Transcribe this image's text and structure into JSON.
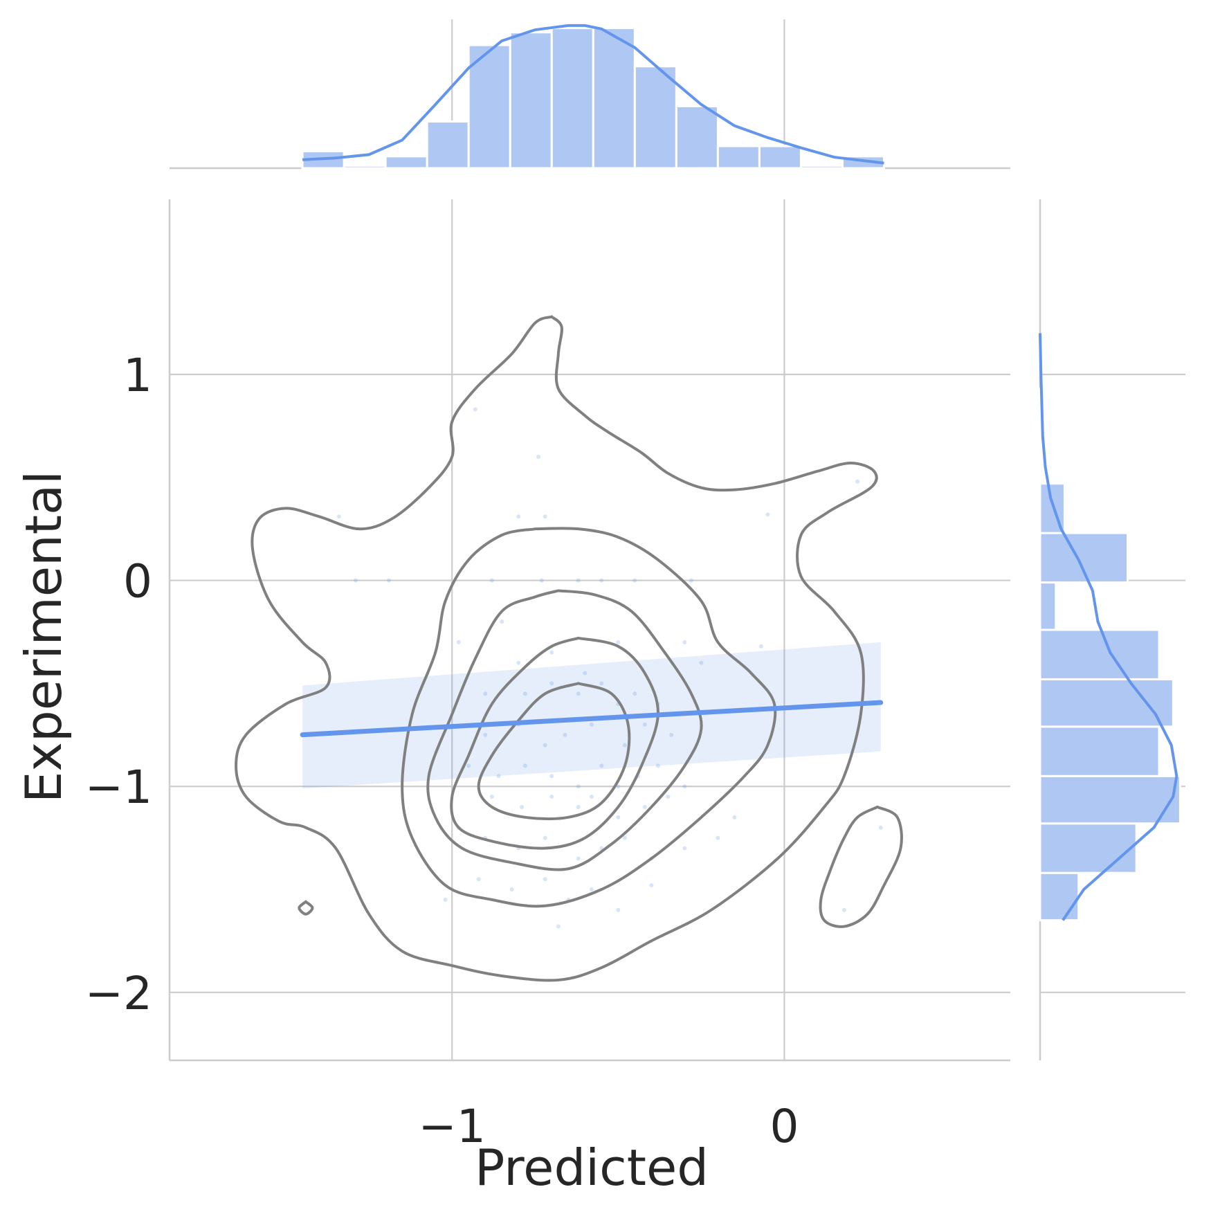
{
  "chart_data": {
    "type": "scatter",
    "subtype": "joint-plot (scatter + regression + kde contours + marginal histograms with kde)",
    "title": "",
    "xlabel": "Predicted",
    "ylabel": "Experimental",
    "xlim": [
      -1.85,
      0.68
    ],
    "ylim": [
      -2.33,
      1.85
    ],
    "x_ticks": [
      -1,
      0
    ],
    "x_tick_labels": [
      "−1",
      "0"
    ],
    "y_ticks": [
      -2,
      -1,
      0,
      1
    ],
    "y_tick_labels": [
      "−2",
      "−1",
      "0",
      "1"
    ],
    "grid": true,
    "colors": {
      "main": "#6495ed",
      "hist": "#aec7f3",
      "contour": "#808080",
      "grid": "#cccccc",
      "text": "#262626"
    },
    "regression": {
      "x_range": [
        -1.45,
        0.29
      ],
      "slope": 0.09,
      "intercept": -0.619,
      "ci_upper_at_ends": [
        -0.51,
        -0.3
      ],
      "ci_lower_at_ends": [
        -1.01,
        -0.83
      ]
    },
    "marginal_x_hist": {
      "bin_edges": [
        -1.45,
        -1.325,
        -1.2,
        -1.075,
        -0.95,
        -0.825,
        -0.7,
        -0.575,
        -0.45,
        -0.325,
        -0.2,
        -0.075,
        0.05,
        0.175,
        0.3
      ],
      "counts": [
        2,
        0.3,
        1.4,
        5.5,
        14.5,
        16,
        16.5,
        16.5,
        12,
        7.3,
        2.6,
        2.6,
        0.3,
        1.4
      ]
    },
    "marginal_x_kde": {
      "x": [
        -1.45,
        -1.35,
        -1.25,
        -1.15,
        -1.05,
        -0.95,
        -0.85,
        -0.75,
        -0.65,
        -0.6,
        -0.55,
        -0.45,
        -0.35,
        -0.25,
        -0.15,
        -0.05,
        0.05,
        0.15,
        0.3
      ],
      "density": [
        1.0,
        1.2,
        1.6,
        3.3,
        7.5,
        11.8,
        15.0,
        16.3,
        16.8,
        16.8,
        16.4,
        14.2,
        10.8,
        7.5,
        5.0,
        3.6,
        2.4,
        1.3,
        0.6
      ]
    },
    "marginal_y_hist": {
      "bin_edges": [
        -1.65,
        -1.42,
        -1.18,
        -0.95,
        -0.71,
        -0.48,
        -0.24,
        -0.01,
        0.23,
        0.47,
        0.7,
        0.93,
        1.17
      ],
      "counts": [
        2.2,
        5.5,
        8,
        6.8,
        7.6,
        6.8,
        0.9,
        5.0,
        1.4,
        0.1,
        0.1,
        0.0
      ]
    },
    "marginal_y_kde": {
      "y": [
        -1.65,
        -1.5,
        -1.35,
        -1.2,
        -1.05,
        -0.95,
        -0.8,
        -0.65,
        -0.5,
        -0.35,
        -0.2,
        -0.05,
        0.1,
        0.25,
        0.4,
        0.55,
        0.7,
        0.85,
        1.0,
        1.2
      ],
      "density": [
        1.3,
        2.5,
        4.5,
        6.5,
        7.6,
        7.8,
        7.5,
        6.6,
        5.2,
        4.0,
        3.3,
        3.0,
        2.2,
        1.2,
        0.6,
        0.3,
        0.15,
        0.1,
        0.05,
        0.0
      ]
    },
    "scatter_points": [
      [
        -0.93,
        0.83
      ],
      [
        -0.74,
        0.6
      ],
      [
        -0.72,
        0.31
      ],
      [
        -1.34,
        0.31
      ],
      [
        -0.8,
        0.31
      ],
      [
        -0.05,
        0.32
      ],
      [
        0.22,
        0.48
      ],
      [
        -1.29,
        0.0
      ],
      [
        -1.19,
        0.0
      ],
      [
        -0.88,
        0.0
      ],
      [
        -0.73,
        0.0
      ],
      [
        -0.62,
        0.0
      ],
      [
        -0.55,
        0.0
      ],
      [
        -0.45,
        0.0
      ],
      [
        -0.28,
        0.0
      ],
      [
        -0.98,
        -0.3
      ],
      [
        -0.85,
        -0.2
      ],
      [
        -0.8,
        -0.4
      ],
      [
        -0.7,
        -0.35
      ],
      [
        -0.6,
        -0.45
      ],
      [
        -0.5,
        -0.3
      ],
      [
        -0.3,
        -0.3
      ],
      [
        -0.25,
        -0.4
      ],
      [
        -0.07,
        -0.32
      ],
      [
        -0.9,
        -0.55
      ],
      [
        -0.78,
        -0.55
      ],
      [
        -0.7,
        -0.5
      ],
      [
        -0.62,
        -0.55
      ],
      [
        -0.55,
        -0.5
      ],
      [
        -0.5,
        -0.6
      ],
      [
        -0.45,
        -0.55
      ],
      [
        -0.38,
        -0.6
      ],
      [
        -0.9,
        -0.75
      ],
      [
        -0.8,
        -0.7
      ],
      [
        -0.72,
        -0.8
      ],
      [
        -0.66,
        -0.75
      ],
      [
        -0.58,
        -0.7
      ],
      [
        -0.48,
        -0.8
      ],
      [
        -0.42,
        -0.7
      ],
      [
        -0.34,
        -0.75
      ],
      [
        -0.95,
        -0.9
      ],
      [
        -0.86,
        -0.95
      ],
      [
        -0.78,
        -0.9
      ],
      [
        -0.7,
        -0.95
      ],
      [
        -0.62,
        -1.0
      ],
      [
        -0.55,
        -0.9
      ],
      [
        -0.5,
        -1.0
      ],
      [
        -0.44,
        -0.95
      ],
      [
        -0.38,
        -0.9
      ],
      [
        -0.3,
        -1.0
      ],
      [
        -0.88,
        -1.05
      ],
      [
        -0.79,
        -1.1
      ],
      [
        -0.7,
        -1.05
      ],
      [
        -0.62,
        -1.1
      ],
      [
        -0.58,
        -1.05
      ],
      [
        -0.5,
        -1.15
      ],
      [
        -0.42,
        -1.1
      ],
      [
        -0.35,
        -1.05
      ],
      [
        -0.15,
        -1.15
      ],
      [
        0.29,
        -1.2
      ],
      [
        -0.98,
        -1.2
      ],
      [
        -0.9,
        -1.25
      ],
      [
        -0.8,
        -1.3
      ],
      [
        -0.72,
        -1.25
      ],
      [
        -0.62,
        -1.35
      ],
      [
        -0.55,
        -1.3
      ],
      [
        -0.48,
        -1.25
      ],
      [
        -0.4,
        -1.35
      ],
      [
        -0.3,
        -1.3
      ],
      [
        -0.2,
        -1.25
      ],
      [
        -0.92,
        -1.45
      ],
      [
        -0.82,
        -1.5
      ],
      [
        -0.72,
        -1.45
      ],
      [
        -0.65,
        -1.55
      ],
      [
        -0.58,
        -1.5
      ],
      [
        -0.5,
        -1.6
      ],
      [
        -0.4,
        -1.48
      ],
      [
        -1.02,
        -1.55
      ],
      [
        -0.68,
        -1.68
      ],
      [
        0.18,
        -1.6
      ]
    ],
    "contours": [
      [
        [
          -0.7,
          1.28
        ],
        [
          -0.67,
          1.23
        ],
        [
          -0.68,
          1.1
        ],
        [
          -0.68,
          0.93
        ],
        [
          -0.6,
          0.8
        ],
        [
          -0.53,
          0.72
        ],
        [
          -0.43,
          0.62
        ],
        [
          -0.35,
          0.52
        ],
        [
          -0.25,
          0.45
        ],
        [
          -0.15,
          0.44
        ],
        [
          -0.03,
          0.47
        ],
        [
          0.1,
          0.53
        ],
        [
          0.2,
          0.57
        ],
        [
          0.27,
          0.53
        ],
        [
          0.26,
          0.45
        ],
        [
          0.13,
          0.33
        ],
        [
          0.05,
          0.22
        ],
        [
          0.05,
          0.02
        ],
        [
          0.15,
          -0.15
        ],
        [
          0.23,
          -0.35
        ],
        [
          0.23,
          -0.65
        ],
        [
          0.18,
          -0.95
        ],
        [
          0.12,
          -1.1
        ],
        [
          -0.02,
          -1.35
        ],
        [
          -0.22,
          -1.6
        ],
        [
          -0.4,
          -1.75
        ],
        [
          -0.55,
          -1.88
        ],
        [
          -0.68,
          -1.94
        ],
        [
          -0.85,
          -1.92
        ],
        [
          -1.0,
          -1.87
        ],
        [
          -1.15,
          -1.8
        ],
        [
          -1.25,
          -1.62
        ],
        [
          -1.35,
          -1.3
        ],
        [
          -1.44,
          -1.2
        ],
        [
          -1.52,
          -1.17
        ],
        [
          -1.62,
          -1.05
        ],
        [
          -1.65,
          -0.9
        ],
        [
          -1.62,
          -0.75
        ],
        [
          -1.5,
          -0.6
        ],
        [
          -1.38,
          -0.52
        ],
        [
          -1.38,
          -0.4
        ],
        [
          -1.45,
          -0.3
        ],
        [
          -1.55,
          -0.1
        ],
        [
          -1.6,
          0.15
        ],
        [
          -1.58,
          0.3
        ],
        [
          -1.5,
          0.35
        ],
        [
          -1.4,
          0.31
        ],
        [
          -1.28,
          0.25
        ],
        [
          -1.18,
          0.3
        ],
        [
          -1.07,
          0.45
        ],
        [
          -1.0,
          0.6
        ],
        [
          -1.0,
          0.77
        ],
        [
          -0.93,
          0.93
        ],
        [
          -0.82,
          1.1
        ],
        [
          -0.75,
          1.25
        ],
        [
          -0.7,
          1.28
        ]
      ],
      [
        [
          -0.75,
          0.25
        ],
        [
          -0.62,
          0.25
        ],
        [
          -0.5,
          0.21
        ],
        [
          -0.38,
          0.1
        ],
        [
          -0.25,
          -0.1
        ],
        [
          -0.2,
          -0.3
        ],
        [
          -0.1,
          -0.45
        ],
        [
          -0.03,
          -0.6
        ],
        [
          -0.05,
          -0.8
        ],
        [
          -0.12,
          -0.95
        ],
        [
          -0.25,
          -1.15
        ],
        [
          -0.4,
          -1.35
        ],
        [
          -0.55,
          -1.5
        ],
        [
          -0.72,
          -1.58
        ],
        [
          -0.88,
          -1.55
        ],
        [
          -1.02,
          -1.48
        ],
        [
          -1.12,
          -1.25
        ],
        [
          -1.15,
          -1.0
        ],
        [
          -1.12,
          -0.65
        ],
        [
          -1.05,
          -0.35
        ],
        [
          -1.02,
          -0.1
        ],
        [
          -0.95,
          0.1
        ],
        [
          -0.85,
          0.22
        ],
        [
          -0.75,
          0.25
        ]
      ],
      [
        [
          -0.68,
          -0.05
        ],
        [
          -0.57,
          -0.07
        ],
        [
          -0.46,
          -0.15
        ],
        [
          -0.36,
          -0.35
        ],
        [
          -0.28,
          -0.55
        ],
        [
          -0.25,
          -0.72
        ],
        [
          -0.3,
          -0.9
        ],
        [
          -0.4,
          -1.1
        ],
        [
          -0.52,
          -1.28
        ],
        [
          -0.65,
          -1.4
        ],
        [
          -0.82,
          -1.37
        ],
        [
          -0.97,
          -1.3
        ],
        [
          -1.05,
          -1.15
        ],
        [
          -1.07,
          -0.95
        ],
        [
          -1.0,
          -0.65
        ],
        [
          -0.93,
          -0.38
        ],
        [
          -0.85,
          -0.15
        ],
        [
          -0.75,
          -0.08
        ],
        [
          -0.68,
          -0.05
        ]
      ],
      [
        [
          -0.62,
          -0.28
        ],
        [
          -0.5,
          -0.32
        ],
        [
          -0.42,
          -0.45
        ],
        [
          -0.38,
          -0.65
        ],
        [
          -0.43,
          -0.9
        ],
        [
          -0.5,
          -1.1
        ],
        [
          -0.6,
          -1.25
        ],
        [
          -0.72,
          -1.3
        ],
        [
          -0.87,
          -1.27
        ],
        [
          -0.98,
          -1.2
        ],
        [
          -1.0,
          -1.05
        ],
        [
          -0.95,
          -0.85
        ],
        [
          -0.88,
          -0.6
        ],
        [
          -0.78,
          -0.42
        ],
        [
          -0.7,
          -0.32
        ],
        [
          -0.62,
          -0.28
        ]
      ],
      [
        [
          -0.62,
          -0.5
        ],
        [
          -0.52,
          -0.55
        ],
        [
          -0.47,
          -0.7
        ],
        [
          -0.48,
          -0.9
        ],
        [
          -0.55,
          -1.08
        ],
        [
          -0.65,
          -1.15
        ],
        [
          -0.78,
          -1.15
        ],
        [
          -0.88,
          -1.1
        ],
        [
          -0.92,
          -1.0
        ],
        [
          -0.88,
          -0.85
        ],
        [
          -0.8,
          -0.68
        ],
        [
          -0.72,
          -0.55
        ],
        [
          -0.62,
          -0.5
        ]
      ],
      [
        [
          0.28,
          -1.1
        ],
        [
          0.34,
          -1.15
        ],
        [
          0.35,
          -1.3
        ],
        [
          0.3,
          -1.48
        ],
        [
          0.25,
          -1.62
        ],
        [
          0.18,
          -1.68
        ],
        [
          0.12,
          -1.65
        ],
        [
          0.11,
          -1.55
        ],
        [
          0.14,
          -1.4
        ],
        [
          0.18,
          -1.25
        ],
        [
          0.22,
          -1.15
        ],
        [
          0.28,
          -1.1
        ]
      ],
      [
        [
          -1.44,
          -1.56
        ],
        [
          -1.42,
          -1.59
        ],
        [
          -1.44,
          -1.62
        ],
        [
          -1.46,
          -1.59
        ],
        [
          -1.44,
          -1.56
        ]
      ]
    ]
  }
}
